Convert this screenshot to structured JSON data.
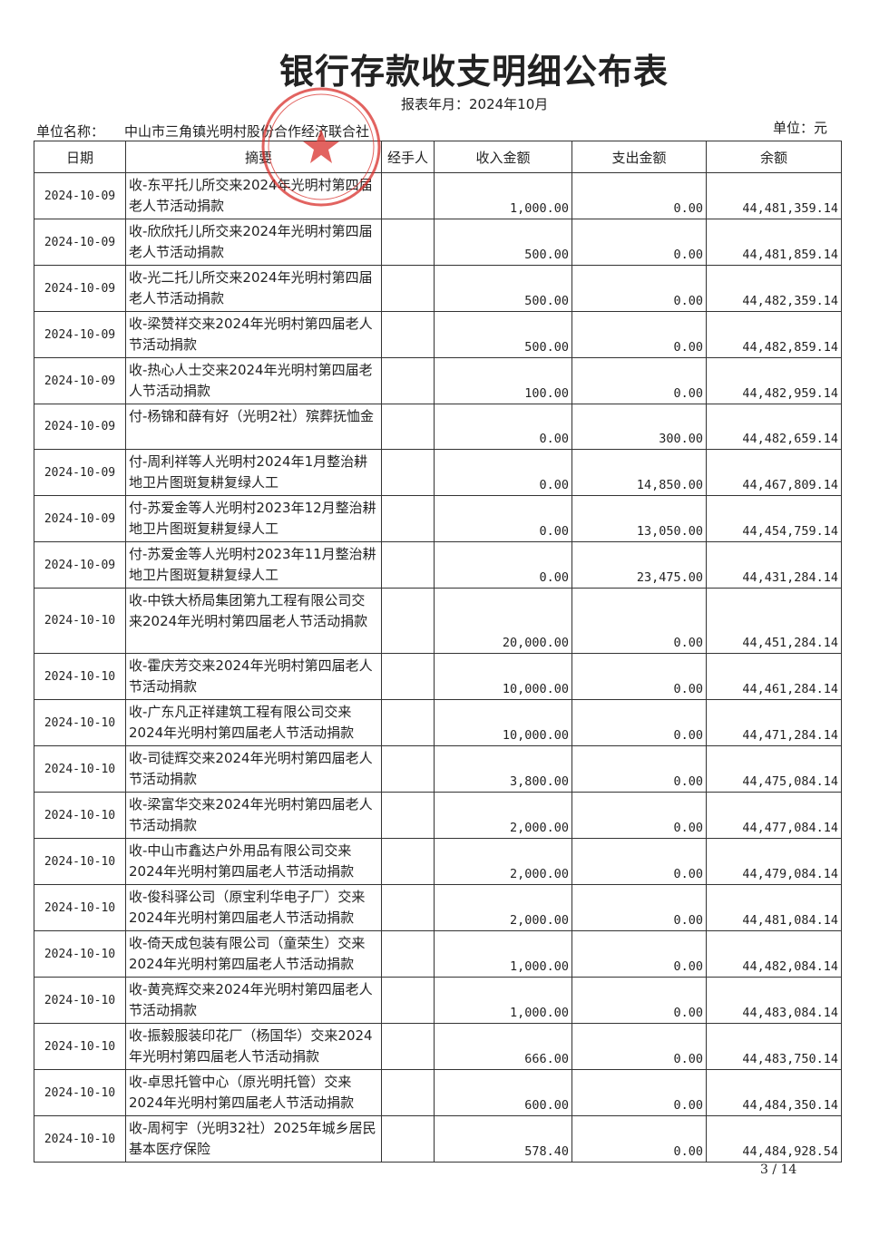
{
  "title": "银行存款收支明细公布表",
  "period": "报表年月：2024年10月",
  "unit_name_label": "单位名称：",
  "unit_name": "中山市三角镇光明村股份合作经济联合社",
  "unit": "单位：元",
  "stamp": {
    "text": "中山市三角镇光明村股份合作经济联合社",
    "color": "#d9302c"
  },
  "columns": [
    "日期",
    "摘要",
    "经手人",
    "收入金额",
    "支出金额",
    "余额"
  ],
  "rows": [
    {
      "date": "2024-10-09",
      "summary": "收-东平托儿所交来2024年光明村第四届老人节活动捐款",
      "handler": "",
      "income": "1,000.00",
      "expense": "0.00",
      "balance": "44,481,359.14"
    },
    {
      "date": "2024-10-09",
      "summary": "收-欣欣托儿所交来2024年光明村第四届老人节活动捐款",
      "handler": "",
      "income": "500.00",
      "expense": "0.00",
      "balance": "44,481,859.14"
    },
    {
      "date": "2024-10-09",
      "summary": "收-光二托儿所交来2024年光明村第四届老人节活动捐款",
      "handler": "",
      "income": "500.00",
      "expense": "0.00",
      "balance": "44,482,359.14"
    },
    {
      "date": "2024-10-09",
      "summary": "收-梁赞祥交来2024年光明村第四届老人节活动捐款",
      "handler": "",
      "income": "500.00",
      "expense": "0.00",
      "balance": "44,482,859.14"
    },
    {
      "date": "2024-10-09",
      "summary": "收-热心人士交来2024年光明村第四届老人节活动捐款",
      "handler": "",
      "income": "100.00",
      "expense": "0.00",
      "balance": "44,482,959.14"
    },
    {
      "date": "2024-10-09",
      "summary": "付-杨锦和薛有好（光明2社）殡葬抚恤金",
      "handler": "",
      "income": "0.00",
      "expense": "300.00",
      "balance": "44,482,659.14"
    },
    {
      "date": "2024-10-09",
      "summary": "付-周利祥等人光明村2024年1月整治耕地卫片图斑复耕复绿人工",
      "handler": "",
      "income": "0.00",
      "expense": "14,850.00",
      "balance": "44,467,809.14"
    },
    {
      "date": "2024-10-09",
      "summary": "付-苏爱金等人光明村2023年12月整治耕地卫片图斑复耕复绿人工",
      "handler": "",
      "income": "0.00",
      "expense": "13,050.00",
      "balance": "44,454,759.14"
    },
    {
      "date": "2024-10-09",
      "summary": "付-苏爱金等人光明村2023年11月整治耕地卫片图斑复耕复绿人工",
      "handler": "",
      "income": "0.00",
      "expense": "23,475.00",
      "balance": "44,431,284.14"
    },
    {
      "date": "2024-10-10",
      "summary": "收-中铁大桥局集团第九工程有限公司交来2024年光明村第四届老人节活动捐款",
      "handler": "",
      "income": "20,000.00",
      "expense": "0.00",
      "balance": "44,451,284.14"
    },
    {
      "date": "2024-10-10",
      "summary": "收-霍庆芳交来2024年光明村第四届老人节活动捐款",
      "handler": "",
      "income": "10,000.00",
      "expense": "0.00",
      "balance": "44,461,284.14"
    },
    {
      "date": "2024-10-10",
      "summary": "收-广东凡正祥建筑工程有限公司交来2024年光明村第四届老人节活动捐款",
      "handler": "",
      "income": "10,000.00",
      "expense": "0.00",
      "balance": "44,471,284.14"
    },
    {
      "date": "2024-10-10",
      "summary": "收-司徒辉交来2024年光明村第四届老人节活动捐款",
      "handler": "",
      "income": "3,800.00",
      "expense": "0.00",
      "balance": "44,475,084.14"
    },
    {
      "date": "2024-10-10",
      "summary": "收-梁富华交来2024年光明村第四届老人节活动捐款",
      "handler": "",
      "income": "2,000.00",
      "expense": "0.00",
      "balance": "44,477,084.14"
    },
    {
      "date": "2024-10-10",
      "summary": "收-中山市鑫达户外用品有限公司交来2024年光明村第四届老人节活动捐款",
      "handler": "",
      "income": "2,000.00",
      "expense": "0.00",
      "balance": "44,479,084.14"
    },
    {
      "date": "2024-10-10",
      "summary": "收-俊科驿公司（原宝利华电子厂）交来2024年光明村第四届老人节活动捐款",
      "handler": "",
      "income": "2,000.00",
      "expense": "0.00",
      "balance": "44,481,084.14"
    },
    {
      "date": "2024-10-10",
      "summary": "收-倚天成包装有限公司（童荣生）交来2024年光明村第四届老人节活动捐款",
      "handler": "",
      "income": "1,000.00",
      "expense": "0.00",
      "balance": "44,482,084.14"
    },
    {
      "date": "2024-10-10",
      "summary": "收-黄亮辉交来2024年光明村第四届老人节活动捐款",
      "handler": "",
      "income": "1,000.00",
      "expense": "0.00",
      "balance": "44,483,084.14"
    },
    {
      "date": "2024-10-10",
      "summary": "收-振毅服装印花厂（杨国华）交来2024年光明村第四届老人节活动捐款",
      "handler": "",
      "income": "666.00",
      "expense": "0.00",
      "balance": "44,483,750.14"
    },
    {
      "date": "2024-10-10",
      "summary": "收-卓思托管中心（原光明托管）交来2024年光明村第四届老人节活动捐款",
      "handler": "",
      "income": "600.00",
      "expense": "0.00",
      "balance": "44,484,350.14"
    },
    {
      "date": "2024-10-10",
      "summary": "收-周柯宇（光明32社）2025年城乡居民基本医疗保险",
      "handler": "",
      "income": "578.40",
      "expense": "0.00",
      "balance": "44,484,928.54"
    }
  ],
  "page": "3 / 14"
}
